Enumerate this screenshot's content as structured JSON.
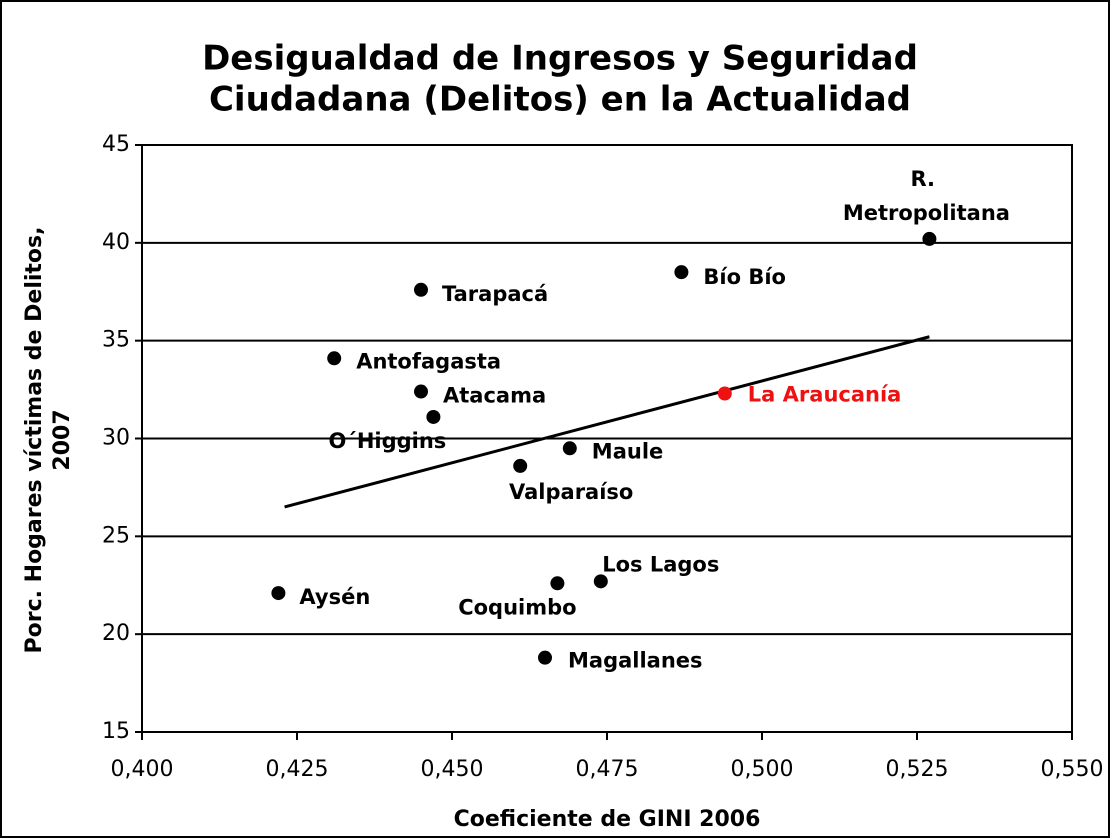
{
  "chart_data": {
    "type": "scatter",
    "title": [
      "Desigualdad de Ingresos y Seguridad",
      "Ciudadana (Delitos) en la Actualidad"
    ],
    "x_label": "Coeficiente de GINI 2006",
    "y_label": [
      "Porc. Hogares víctimas de Delitos,",
      "2007"
    ],
    "labels": [
      "R. Metropolitana",
      "Bío Bío",
      "Tarapacá",
      "Antofagasta",
      "Atacama",
      "O´Higgins",
      "La Araucanía",
      "Maule",
      "Valparaíso",
      "Los Lagos",
      "Coquimbo",
      "Aysén",
      "Magallanes"
    ],
    "x": [
      0.527,
      0.487,
      0.445,
      0.431,
      0.445,
      0.447,
      0.494,
      0.469,
      0.461,
      0.474,
      0.467,
      0.422,
      0.465
    ],
    "values": [
      40.2,
      38.5,
      37.6,
      34.1,
      32.4,
      31.1,
      32.3,
      29.5,
      28.6,
      22.7,
      22.6,
      22.1,
      18.8
    ],
    "colors": [
      "#000000",
      "#000000",
      "#000000",
      "#000000",
      "#000000",
      "#000000",
      "#ee1111",
      "#000000",
      "#000000",
      "#000000",
      "#000000",
      "#000000",
      "#000000"
    ],
    "trendline": {
      "x": [
        0.423,
        0.527
      ],
      "values": [
        26.5,
        35.2
      ],
      "color": "#000000"
    },
    "xlim": [
      0.4,
      0.55
    ],
    "xticks": [
      {
        "value": 0.4,
        "label": "0,400"
      },
      {
        "value": 0.425,
        "label": "0,425"
      },
      {
        "value": 0.45,
        "label": "0,450"
      },
      {
        "value": 0.475,
        "label": "0,475"
      },
      {
        "value": 0.5,
        "label": "0,500"
      },
      {
        "value": 0.525,
        "label": "0,525"
      },
      {
        "value": 0.55,
        "label": "0,550"
      }
    ],
    "ylim": [
      15,
      45
    ],
    "yticks": [
      15,
      20,
      25,
      30,
      35,
      40,
      45
    ],
    "grid": true
  }
}
